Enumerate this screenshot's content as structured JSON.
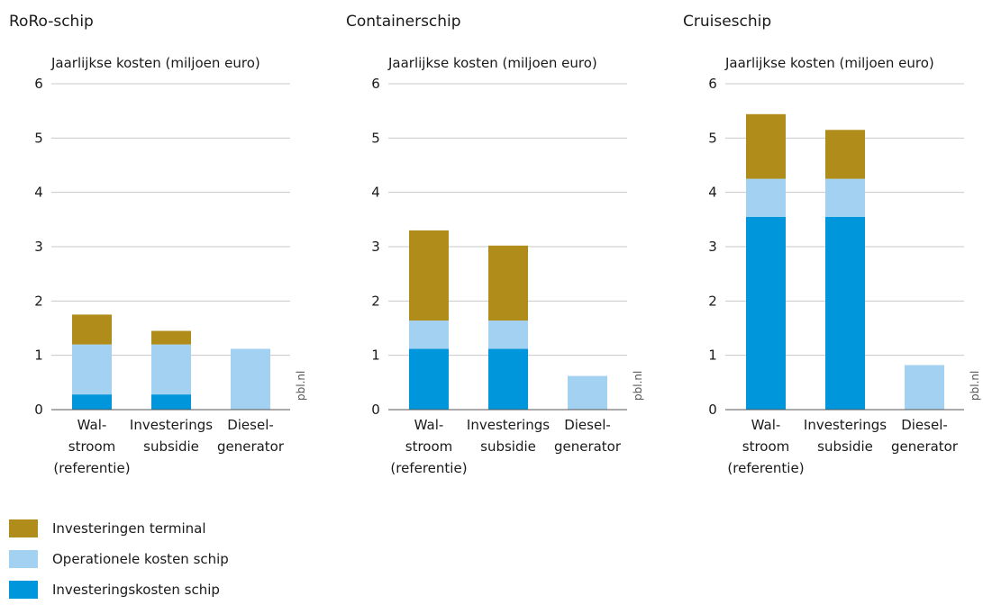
{
  "legend": [
    {
      "name": "Investeringen terminal",
      "color": "#B08D1A"
    },
    {
      "name": "Operationele kosten schip",
      "color": "#A3D1F2"
    },
    {
      "name": "Investeringskosten schip",
      "color": "#0096DB"
    }
  ],
  "chart_data": [
    {
      "type": "bar",
      "title": "RoRo-schip",
      "ylabel": "Jaarlijkse kosten (miljoen euro)",
      "ylim": [
        0,
        6
      ],
      "yticks": [
        "0",
        "1",
        "2",
        "3",
        "4",
        "5",
        "6"
      ],
      "categories": [
        [
          "Wal-",
          "stroom",
          "(referentie)"
        ],
        [
          "Investerings",
          "subsidie"
        ],
        [
          "Diesel-",
          "generator"
        ]
      ],
      "source": "pbl.nl",
      "series": [
        {
          "name": "Investeringskosten schip",
          "values": [
            0.28,
            0.28,
            0
          ]
        },
        {
          "name": "Operationele kosten schip",
          "values": [
            0.92,
            0.92,
            1.12
          ]
        },
        {
          "name": "Investeringen terminal",
          "values": [
            0.55,
            0.25,
            0
          ]
        }
      ]
    },
    {
      "type": "bar",
      "title": "Containerschip",
      "ylabel": "Jaarlijkse kosten (miljoen euro)",
      "ylim": [
        0,
        6
      ],
      "yticks": [
        "0",
        "1",
        "2",
        "3",
        "4",
        "5",
        "6"
      ],
      "categories": [
        [
          "Wal-",
          "stroom",
          "(referentie)"
        ],
        [
          "Investerings",
          "subsidie"
        ],
        [
          "Diesel-",
          "generator"
        ]
      ],
      "source": "pbl.nl",
      "series": [
        {
          "name": "Investeringskosten schip",
          "values": [
            1.12,
            1.12,
            0
          ]
        },
        {
          "name": "Operationele kosten schip",
          "values": [
            0.52,
            0.52,
            0.62
          ]
        },
        {
          "name": "Investeringen terminal",
          "values": [
            1.66,
            1.38,
            0
          ]
        }
      ]
    },
    {
      "type": "bar",
      "title": "Cruiseschip",
      "ylabel": "Jaarlijkse kosten (miljoen euro)",
      "ylim": [
        0,
        6
      ],
      "yticks": [
        "0",
        "1",
        "2",
        "3",
        "4",
        "5",
        "6"
      ],
      "categories": [
        [
          "Wal-",
          "stroom",
          "(referentie)"
        ],
        [
          "Investerings",
          "subsidie"
        ],
        [
          "Diesel-",
          "generator"
        ]
      ],
      "source": "pbl.nl",
      "series": [
        {
          "name": "Investeringskosten schip",
          "values": [
            3.55,
            3.55,
            0
          ]
        },
        {
          "name": "Operationele kosten schip",
          "values": [
            0.7,
            0.7,
            0.82
          ]
        },
        {
          "name": "Investeringen terminal",
          "values": [
            1.19,
            0.9,
            0
          ]
        }
      ]
    }
  ]
}
